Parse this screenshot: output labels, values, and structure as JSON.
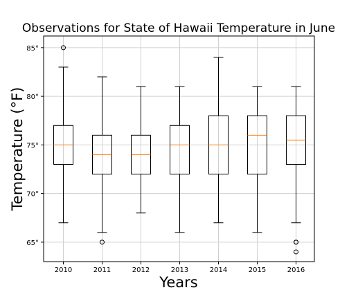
{
  "chart_data": {
    "type": "boxplot",
    "title": "Observations for State of Hawaii Temperature in June",
    "xlabel": "Years",
    "ylabel": "Temperature (°F)",
    "categories": [
      "2010",
      "2011",
      "2012",
      "2013",
      "2014",
      "2015",
      "2016"
    ],
    "ylim": [
      63,
      86.2
    ],
    "yticks": [
      65,
      70,
      75,
      80,
      85
    ],
    "ytick_labels": [
      "65°",
      "70°",
      "75°",
      "80°",
      "85°"
    ],
    "grid": true,
    "boxes": [
      {
        "category": "2010",
        "whisker_low": 67,
        "q1": 73,
        "median": 75,
        "q3": 77,
        "whisker_high": 83,
        "outliers": [
          85
        ]
      },
      {
        "category": "2011",
        "whisker_low": 66,
        "q1": 72,
        "median": 74,
        "q3": 76,
        "whisker_high": 82,
        "outliers": [
          65
        ]
      },
      {
        "category": "2012",
        "whisker_low": 68,
        "q1": 72,
        "median": 74,
        "q3": 76,
        "whisker_high": 81,
        "outliers": []
      },
      {
        "category": "2013",
        "whisker_low": 66,
        "q1": 72,
        "median": 75,
        "q3": 77,
        "whisker_high": 81,
        "outliers": []
      },
      {
        "category": "2014",
        "whisker_low": 67,
        "q1": 72,
        "median": 75,
        "q3": 78,
        "whisker_high": 84,
        "outliers": []
      },
      {
        "category": "2015",
        "whisker_low": 66,
        "q1": 72,
        "median": 76,
        "q3": 78,
        "whisker_high": 81,
        "outliers": []
      },
      {
        "category": "2016",
        "whisker_low": 67,
        "q1": 73,
        "median": 75.5,
        "q3": 78,
        "whisker_high": 81,
        "outliers": [
          65,
          65,
          64
        ]
      }
    ],
    "colors": {
      "box": "#000000",
      "median": "#ff7f0e",
      "grid": "#d0d0d0"
    }
  }
}
